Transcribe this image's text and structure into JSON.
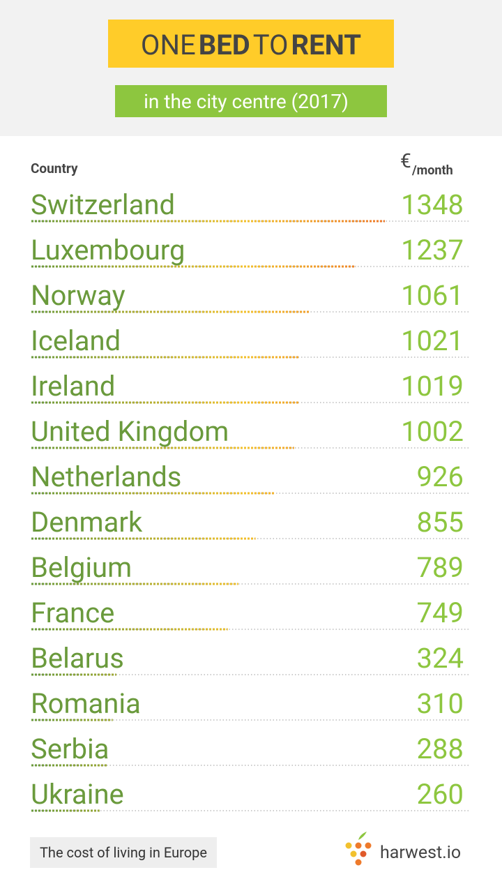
{
  "chart_data": {
    "type": "dotbar",
    "title_words": [
      "ONE",
      "BED",
      "TO",
      "RENT"
    ],
    "subtitle": "in the city centre (2017)",
    "category_header": "Country",
    "unit_symbol": "€",
    "unit_per": "/month",
    "categories": [
      "Switzerland",
      "Luxembourg",
      "Norway",
      "Iceland",
      "Ireland",
      "United Kingdom",
      "Netherlands",
      "Denmark",
      "Belgium",
      "France",
      "Belarus",
      "Romania",
      "Serbia",
      "Ukraine"
    ],
    "values": [
      1348,
      1237,
      1061,
      1021,
      1019,
      1002,
      926,
      855,
      789,
      749,
      324,
      310,
      288,
      260
    ],
    "colors": [
      "#6a9a3c",
      "#f2c12e",
      "#ee7a2b"
    ],
    "footer": "The cost of living in Europe",
    "brand": "harwest.io"
  }
}
